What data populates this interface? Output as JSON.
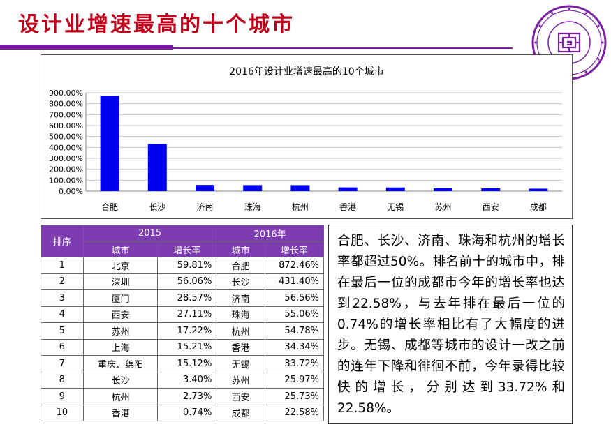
{
  "slide": {
    "title": "设计业增速最高的十个城市"
  },
  "colors": {
    "title": "#c0001a",
    "accent": "#7b1fa2",
    "bar": "#0000ee",
    "table_header": "#7d3cb0"
  },
  "chart_data": {
    "type": "bar",
    "title": "2016年设计业增速最高的10个城市",
    "categories": [
      "合肥",
      "长沙",
      "济南",
      "珠海",
      "杭州",
      "香港",
      "无锡",
      "苏州",
      "西安",
      "成都"
    ],
    "values": [
      872.46,
      431.4,
      56.56,
      55.06,
      54.78,
      34.34,
      33.72,
      25.97,
      25.73,
      22.58
    ],
    "y_ticks": [
      "0.00%",
      "100.00%",
      "200.00%",
      "300.00%",
      "400.00%",
      "500.00%",
      "600.00%",
      "700.00%",
      "800.00%",
      "900.00%"
    ],
    "ylim": [
      0,
      900
    ],
    "grid": true,
    "legend": "none"
  },
  "table": {
    "rank_header": "排序",
    "year_2015": "2015",
    "year_2016": "2016年",
    "city_header": "城市",
    "growth_header": "增长率",
    "rows": [
      {
        "rank": "1",
        "city_2015": "北京",
        "rate_2015": "59.81%",
        "city_2016": "合肥",
        "rate_2016": "872.46%"
      },
      {
        "rank": "2",
        "city_2015": "深圳",
        "rate_2015": "56.06%",
        "city_2016": "长沙",
        "rate_2016": "431.40%"
      },
      {
        "rank": "3",
        "city_2015": "厦门",
        "rate_2015": "28.57%",
        "city_2016": "济南",
        "rate_2016": "56.56%"
      },
      {
        "rank": "4",
        "city_2015": "西安",
        "rate_2015": "27.11%",
        "city_2016": "珠海",
        "rate_2016": "55.06%"
      },
      {
        "rank": "5",
        "city_2015": "苏州",
        "rate_2015": "17.22%",
        "city_2016": "杭州",
        "rate_2016": "54.78%"
      },
      {
        "rank": "6",
        "city_2015": "上海",
        "rate_2015": "15.21%",
        "city_2016": "香港",
        "rate_2016": "34.34%"
      },
      {
        "rank": "7",
        "city_2015": "重庆、绵阳",
        "rate_2015": "15.12%",
        "city_2016": "无锡",
        "rate_2016": "33.72%"
      },
      {
        "rank": "8",
        "city_2015": "长沙",
        "rate_2015": "3.40%",
        "city_2016": "苏州",
        "rate_2016": "25.97%"
      },
      {
        "rank": "9",
        "city_2015": "杭州",
        "rate_2015": "2.73%",
        "city_2016": "西安",
        "rate_2016": "25.73%"
      },
      {
        "rank": "10",
        "city_2015": "香港",
        "rate_2015": "0.74%",
        "city_2016": "成都",
        "rate_2016": "22.58%"
      }
    ]
  },
  "summary": {
    "text": "合肥、长沙、济南、珠海和杭州的增长率都超过50%。排名前十的城市中，排在最后一位的成都市今年的增长率也达到22.58%，与去年排在最后一位的0.74%的增长率相比有了大幅度的进步。无锡、成都等城市的设计一改之前的连年下降和徘徊不前，今年录得比较快的增长，分别达到33.72%和22.58%。"
  }
}
